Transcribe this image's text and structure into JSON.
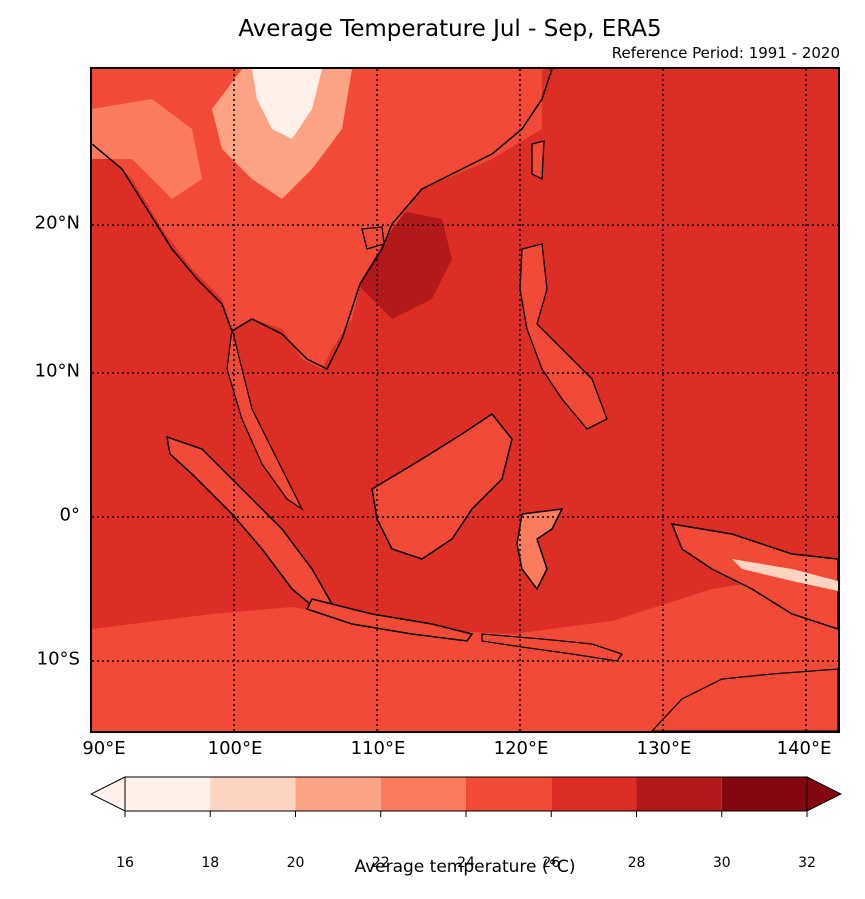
{
  "title": "Average Temperature Jul - Sep, ERA5",
  "subtitle": "Reference Period: 1991 - 2020",
  "latitude_labels": [
    "20°N",
    "10°N",
    "0°",
    "10°S"
  ],
  "longitude_labels": [
    "90°E",
    "100°E",
    "110°E",
    "120°E",
    "130°E",
    "140°E"
  ],
  "colorbar": {
    "label": "Average temperature (°C)",
    "ticks": [
      "16",
      "18",
      "20",
      "22",
      "24",
      "26",
      "28",
      "30",
      "32"
    ],
    "colors": [
      "#fff0e9",
      "#fdd3c2",
      "#fca385",
      "#fb7b5e",
      "#f14a36",
      "#dc2e25",
      "#b3181b",
      "#830710"
    ]
  },
  "colors": {
    "sea_26_28": "#dc2e25",
    "south_24_26": "#f14a36",
    "warm_28_30": "#b3181b",
    "highland_cool": "#fca385",
    "coastline": "#000000"
  },
  "chart_data": {
    "type": "heatmap",
    "title": "Average Temperature Jul - Sep, ERA5",
    "xlabel": "",
    "ylabel": "",
    "xlim": [
      90,
      142.5
    ],
    "ylim": [
      -15,
      32
    ],
    "levels": [
      16,
      18,
      20,
      22,
      24,
      26,
      28,
      30,
      32
    ],
    "colorbar_label": "Average temperature (°C)",
    "grid": true
  }
}
